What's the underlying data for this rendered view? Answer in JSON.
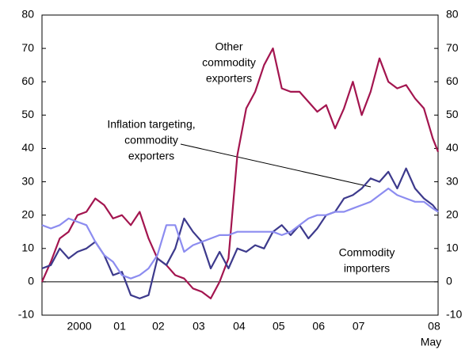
{
  "chart_data": {
    "type": "line",
    "x": [
      1999.5,
      1999.7,
      1999.9,
      2000.1,
      2000.3,
      2000.5,
      2000.7,
      2000.9,
      2001.1,
      2001.3,
      2001.5,
      2001.7,
      2001.9,
      2002.1,
      2002.3,
      2002.5,
      2002.7,
      2002.9,
      2003.1,
      2003.3,
      2003.5,
      2003.7,
      2003.9,
      2004.1,
      2004.3,
      2004.5,
      2004.7,
      2004.9,
      2005.1,
      2005.3,
      2005.5,
      2005.7,
      2005.9,
      2006.1,
      2006.3,
      2006.5,
      2006.7,
      2006.9,
      2007.1,
      2007.3,
      2007.5,
      2007.7,
      2007.9,
      2008.1,
      2008.3,
      2008.42
    ],
    "series": [
      {
        "color": "#a3154f",
        "values": [
          0,
          6,
          13,
          15,
          20,
          21,
          25,
          23,
          19,
          20,
          17,
          21,
          13,
          7,
          5,
          2,
          1,
          -2,
          -3,
          -5,
          0,
          7,
          38,
          52,
          57,
          65,
          70,
          58,
          57,
          57,
          54,
          51,
          53,
          46,
          52,
          60,
          50,
          57,
          67,
          60,
          58,
          59,
          55,
          52,
          43,
          39
        ]
      },
      {
        "color": "#3d3a8c",
        "values": [
          4,
          5,
          10,
          7,
          9,
          10,
          12,
          8,
          2,
          3,
          -4,
          -5,
          -4,
          7,
          5,
          10,
          19,
          15,
          12,
          4,
          9,
          4,
          10,
          9,
          11,
          10,
          15,
          17,
          14,
          17,
          13,
          16,
          20,
          21,
          25,
          26,
          28,
          31,
          30,
          33,
          28,
          34,
          28,
          25,
          23,
          21
        ]
      },
      {
        "color": "#8c8cf0",
        "values": [
          17,
          16,
          17,
          19,
          18,
          17,
          12,
          8,
          6,
          2,
          1,
          2,
          4,
          8,
          17,
          17,
          9,
          11,
          12,
          13,
          14,
          14,
          15,
          15,
          15,
          15,
          15,
          14,
          15,
          17,
          19,
          20,
          20,
          21,
          21,
          22,
          23,
          24,
          26,
          28,
          26,
          25,
          24,
          24,
          22,
          21
        ]
      }
    ],
    "annotations": [
      {
        "lines": [
          "Other",
          "commodity",
          "exporters"
        ]
      },
      {
        "lines": [
          "Inflation targeting,",
          "commodity",
          "exporters"
        ]
      },
      {
        "lines": [
          "Commodity",
          "importers"
        ]
      }
    ],
    "xlim": [
      1999.5,
      2008.42
    ],
    "xticks": [
      {
        "value": 2000.34,
        "label": "2000"
      },
      {
        "value": 2001.25,
        "label": "01"
      },
      {
        "value": 2002.12,
        "label": "02"
      },
      {
        "value": 2003.03,
        "label": "03"
      },
      {
        "value": 2003.94,
        "label": "04"
      },
      {
        "value": 2004.83,
        "label": "05"
      },
      {
        "value": 2005.73,
        "label": "06"
      },
      {
        "value": 2006.63,
        "label": "07"
      },
      {
        "value": 2008.33,
        "label": "08"
      }
    ],
    "x_note": "May",
    "ylim": [
      -10,
      80
    ],
    "yticks": [
      -10,
      0,
      10,
      20,
      30,
      40,
      50,
      60,
      70,
      80
    ],
    "y2lim": [
      -10,
      80
    ],
    "y2ticks": [
      -10,
      0,
      10,
      20,
      30,
      40,
      50,
      60,
      70,
      80
    ]
  }
}
